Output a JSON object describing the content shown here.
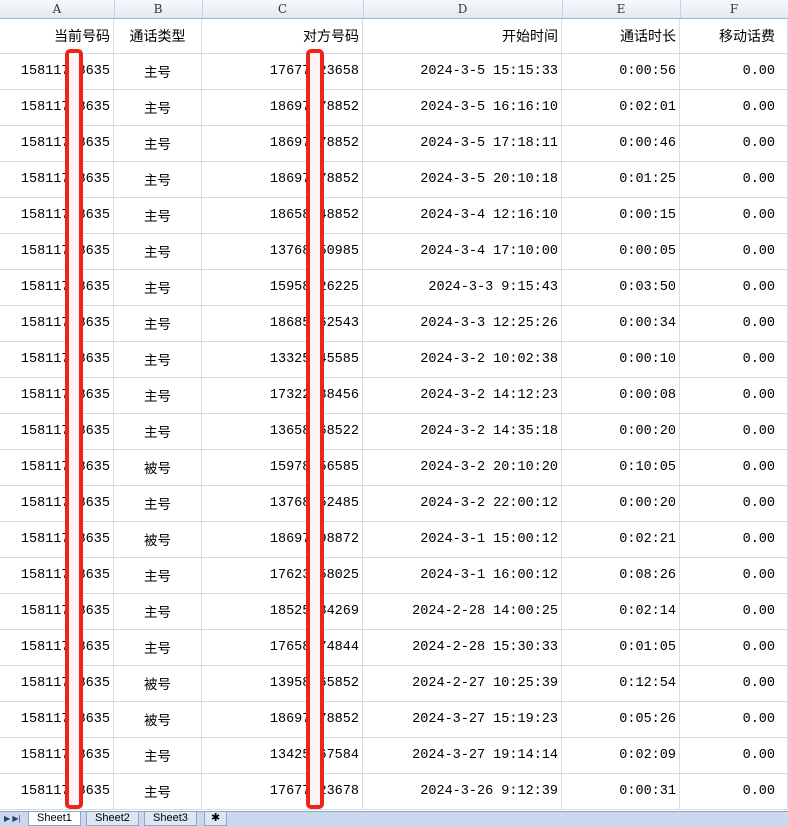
{
  "columns": [
    "A",
    "B",
    "C",
    "D",
    "E",
    "F"
  ],
  "headers": [
    "当前号码",
    "通话类型",
    "对方号码",
    "开始时间",
    "通话时长",
    "移动话费"
  ],
  "rows": [
    [
      "15811758635",
      "主号",
      "17677123658",
      "2024-3-5 15:15:33",
      "0:00:56",
      "0.00"
    ],
    [
      "15811758635",
      "主号",
      "18697378852",
      "2024-3-5 16:16:10",
      "0:02:01",
      "0.00"
    ],
    [
      "15811758635",
      "主号",
      "18697378852",
      "2024-3-5 17:18:11",
      "0:00:46",
      "0.00"
    ],
    [
      "15811758635",
      "主号",
      "18697378852",
      "2024-3-5 20:10:18",
      "0:01:25",
      "0.00"
    ],
    [
      "15811758635",
      "主号",
      "18658348852",
      "2024-3-4 12:16:10",
      "0:00:15",
      "0.00"
    ],
    [
      "15811758635",
      "主号",
      "13768250985",
      "2024-3-4 17:10:00",
      "0:00:05",
      "0.00"
    ],
    [
      "15811758635",
      "主号",
      "15958426225",
      "2024-3-3 9:15:43",
      "0:03:50",
      "0.00"
    ],
    [
      "15811758635",
      "主号",
      "18685562543",
      "2024-3-3 12:25:26",
      "0:00:34",
      "0.00"
    ],
    [
      "15811758635",
      "主号",
      "13325545585",
      "2024-3-2 10:02:38",
      "0:00:10",
      "0.00"
    ],
    [
      "15811758635",
      "主号",
      "17322538456",
      "2024-3-2 14:12:23",
      "0:00:08",
      "0.00"
    ],
    [
      "15811758635",
      "主号",
      "13658568522",
      "2024-3-2 14:35:18",
      "0:00:20",
      "0.00"
    ],
    [
      "15811758635",
      "被号",
      "15978156585",
      "2024-3-2 20:10:20",
      "0:10:05",
      "0.00"
    ],
    [
      "15811758635",
      "主号",
      "13768252485",
      "2024-3-2 22:00:12",
      "0:00:20",
      "0.00"
    ],
    [
      "15811758635",
      "被号",
      "18697398872",
      "2024-3-1 15:00:12",
      "0:02:21",
      "0.00"
    ],
    [
      "15811758635",
      "主号",
      "17623558025",
      "2024-3-1 16:00:12",
      "0:08:26",
      "0.00"
    ],
    [
      "15811758635",
      "主号",
      "18525534269",
      "2024-2-28 14:00:25",
      "0:02:14",
      "0.00"
    ],
    [
      "15811758635",
      "主号",
      "17658474844",
      "2024-2-28 15:30:33",
      "0:01:05",
      "0.00"
    ],
    [
      "15811758635",
      "被号",
      "13958265852",
      "2024-2-27 10:25:39",
      "0:12:54",
      "0.00"
    ],
    [
      "15811758635",
      "被号",
      "18697378852",
      "2024-3-27 15:19:23",
      "0:05:26",
      "0.00"
    ],
    [
      "15811758635",
      "主号",
      "13425567584",
      "2024-3-27 19:14:14",
      "0:02:09",
      "0.00"
    ],
    [
      "15811758635",
      "主号",
      "17677123678",
      "2024-3-26 9:12:39",
      "0:00:31",
      "0.00"
    ]
  ],
  "sheet_tabs": [
    "Sheet1",
    "Sheet2",
    "Sheet3"
  ],
  "active_sheet": "Sheet1",
  "colors": {
    "redaction": "#ee2419",
    "grid": "#d4dce6",
    "tab_bar": "#c9d8ec"
  }
}
